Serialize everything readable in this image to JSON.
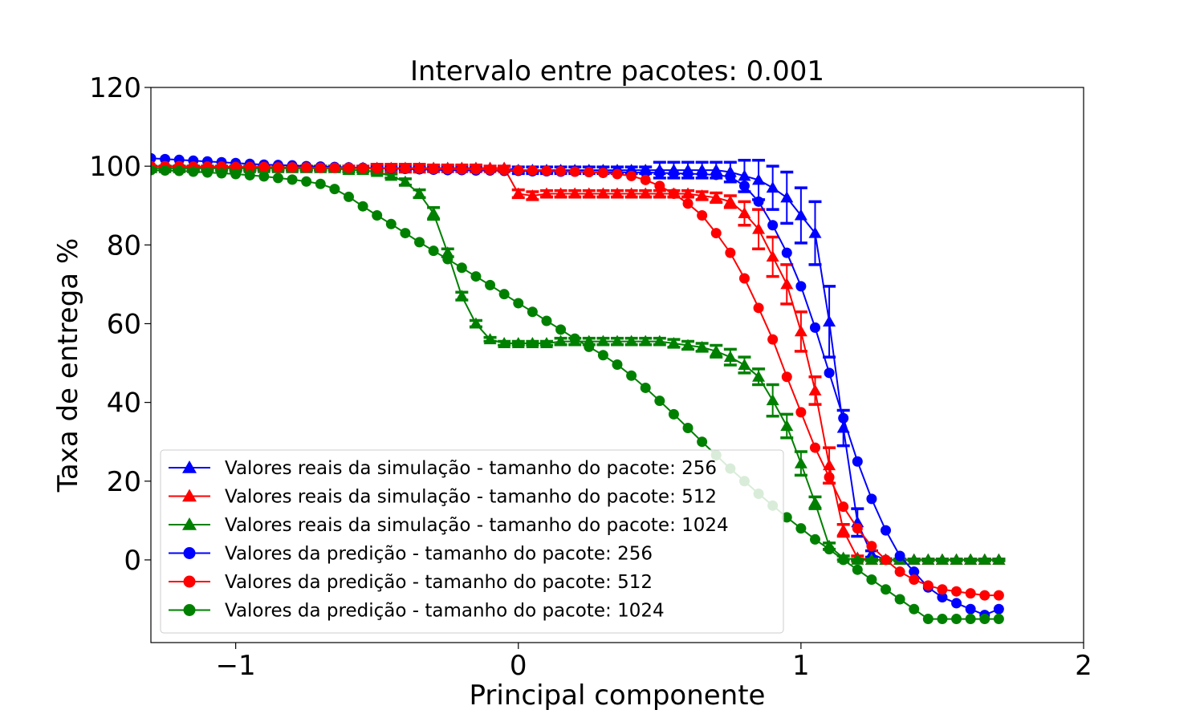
{
  "chart_data": {
    "type": "line",
    "title": "Intervalo entre pacotes: 0.001",
    "xlabel": "Principal componente",
    "ylabel": "Taxa de entrega %",
    "xlim": [
      -1.3,
      2.0
    ],
    "ylim": [
      -21,
      120
    ],
    "xticks": [
      -1,
      0,
      1,
      2
    ],
    "xtick_labels": [
      "−1",
      "0",
      "1",
      "2"
    ],
    "yticks": [
      0,
      20,
      40,
      60,
      80,
      100,
      120
    ],
    "ytick_labels": [
      "0",
      "20",
      "40",
      "60",
      "80",
      "100",
      "120"
    ],
    "grid": false,
    "legend_position": "lower-left",
    "series": [
      {
        "name": "Valores reais da simulação - tamanho do pacote: 256",
        "color": "#0000ff",
        "marker": "triangle",
        "errorbars": true,
        "x": [
          -1.3,
          -1.25,
          -1.2,
          -1.15,
          -1.1,
          -1.05,
          -1.0,
          -0.95,
          -0.9,
          -0.85,
          -0.8,
          -0.75,
          -0.7,
          -0.65,
          -0.6,
          -0.55,
          -0.5,
          -0.45,
          -0.4,
          -0.35,
          -0.3,
          -0.25,
          -0.2,
          -0.15,
          -0.1,
          -0.05,
          0.0,
          0.05,
          0.1,
          0.15,
          0.2,
          0.25,
          0.3,
          0.35,
          0.4,
          0.45,
          0.5,
          0.55,
          0.6,
          0.65,
          0.7,
          0.75,
          0.8,
          0.85,
          0.9,
          0.95,
          1.0,
          1.05,
          1.1,
          1.15,
          1.2,
          1.25,
          1.3,
          1.35,
          1.4,
          1.45,
          1.5,
          1.55,
          1.6,
          1.65,
          1.7
        ],
        "y": [
          99.5,
          99.5,
          99.5,
          99.5,
          99.5,
          99.5,
          99.5,
          99.5,
          99.5,
          99.5,
          99.5,
          99.5,
          99.5,
          99.5,
          99.5,
          99.5,
          99.5,
          99.5,
          99.5,
          99.5,
          99.5,
          99.5,
          99.5,
          99.5,
          99.5,
          99.5,
          99.0,
          99.0,
          99.0,
          99.0,
          99.0,
          99.0,
          99.0,
          99.0,
          99.0,
          99.0,
          99.0,
          99.0,
          99.0,
          99.0,
          99.0,
          98.5,
          97.5,
          96.5,
          94.5,
          92.0,
          87.5,
          83.0,
          60.5,
          33.5,
          9.5,
          1.5,
          0,
          0,
          0,
          0,
          0,
          0,
          0,
          0,
          0
        ],
        "err": [
          0.5,
          0.5,
          0.5,
          0.5,
          0.5,
          0.5,
          0.5,
          0.5,
          0.5,
          0.5,
          0.5,
          0.5,
          0.5,
          0.5,
          0.5,
          0.5,
          0.5,
          0.5,
          0.5,
          0.5,
          0.5,
          0.5,
          0.5,
          0.5,
          0.5,
          0.5,
          0.8,
          0.8,
          0.8,
          0.8,
          0.8,
          0.8,
          0.8,
          0.8,
          0.8,
          0.8,
          2.0,
          2.0,
          2.0,
          2.0,
          2.0,
          2.5,
          4.0,
          5.0,
          5.5,
          6.5,
          7.0,
          8.0,
          9.0,
          4.5,
          3.5,
          0.8,
          0.3,
          0.2,
          0.2,
          0.2,
          0.2,
          0.2,
          0.2,
          0.2,
          0.2
        ]
      },
      {
        "name": "Valores reais da simulação - tamanho do pacote: 512",
        "color": "#ff0000",
        "marker": "triangle",
        "errorbars": true,
        "x": [
          -1.3,
          -1.25,
          -1.2,
          -1.15,
          -1.1,
          -1.05,
          -1.0,
          -0.95,
          -0.9,
          -0.85,
          -0.8,
          -0.75,
          -0.7,
          -0.65,
          -0.6,
          -0.55,
          -0.5,
          -0.45,
          -0.4,
          -0.35,
          -0.3,
          -0.25,
          -0.2,
          -0.15,
          -0.1,
          -0.05,
          0.0,
          0.05,
          0.1,
          0.15,
          0.2,
          0.25,
          0.3,
          0.35,
          0.4,
          0.45,
          0.5,
          0.55,
          0.6,
          0.65,
          0.7,
          0.75,
          0.8,
          0.85,
          0.9,
          0.95,
          1.0,
          1.05,
          1.1,
          1.15,
          1.2,
          1.25,
          1.3,
          1.35,
          1.4,
          1.45,
          1.5,
          1.55,
          1.6,
          1.65,
          1.7
        ],
        "y": [
          99.5,
          99.5,
          99.5,
          99.5,
          99.5,
          99.5,
          99.5,
          99.5,
          99.5,
          99.5,
          99.5,
          99.5,
          99.5,
          99.5,
          99.5,
          99.5,
          99.5,
          99.5,
          99.5,
          99.5,
          99.5,
          99.5,
          99.5,
          99.5,
          99.5,
          99.5,
          93.0,
          92.5,
          93.0,
          93.0,
          93.0,
          93.0,
          93.0,
          93.0,
          93.0,
          93.0,
          93.0,
          93.0,
          93.0,
          92.5,
          92.0,
          91.0,
          88.0,
          84.0,
          77.0,
          70.0,
          58.0,
          43.0,
          24.0,
          7.5,
          0.5,
          0,
          0,
          0,
          0,
          0,
          0,
          0,
          0,
          0,
          0
        ],
        "err": [
          0.5,
          0.5,
          0.5,
          0.5,
          0.5,
          0.5,
          0.5,
          0.5,
          0.5,
          0.5,
          0.5,
          0.5,
          0.5,
          0.5,
          0.5,
          0.5,
          1.0,
          1.0,
          1.0,
          1.0,
          0.8,
          0.8,
          0.8,
          0.8,
          0.5,
          0.5,
          1.0,
          1.0,
          0.8,
          0.8,
          0.8,
          0.8,
          0.8,
          0.8,
          0.8,
          0.8,
          0.8,
          0.8,
          0.8,
          1.0,
          1.2,
          1.5,
          3.0,
          5.0,
          5.0,
          5.0,
          5.0,
          3.5,
          4.5,
          1.5,
          0.5,
          0.2,
          0.2,
          0.2,
          0.2,
          0.2,
          0.2,
          0.2,
          0.2,
          0.2,
          0.2
        ]
      },
      {
        "name": "Valores reais da simulação - tamanho do pacote: 1024",
        "color": "#008000",
        "marker": "triangle",
        "errorbars": true,
        "x": [
          -1.3,
          -1.25,
          -1.2,
          -1.15,
          -1.1,
          -1.05,
          -1.0,
          -0.95,
          -0.9,
          -0.85,
          -0.8,
          -0.75,
          -0.7,
          -0.65,
          -0.6,
          -0.55,
          -0.5,
          -0.45,
          -0.4,
          -0.35,
          -0.3,
          -0.25,
          -0.2,
          -0.15,
          -0.1,
          -0.05,
          0.0,
          0.05,
          0.1,
          0.15,
          0.2,
          0.25,
          0.3,
          0.35,
          0.4,
          0.45,
          0.5,
          0.55,
          0.6,
          0.65,
          0.7,
          0.75,
          0.8,
          0.85,
          0.9,
          0.95,
          1.0,
          1.05,
          1.1,
          1.15,
          1.2,
          1.25,
          1.3,
          1.35,
          1.4,
          1.45,
          1.5,
          1.55,
          1.6,
          1.65,
          1.7
        ],
        "y": [
          99.5,
          99.5,
          99.5,
          99.5,
          99.5,
          99.5,
          99.5,
          99.5,
          99.5,
          99.5,
          99.5,
          99.5,
          99.5,
          99.5,
          99.0,
          99.0,
          98.5,
          97.5,
          96.0,
          93.0,
          88.0,
          78.0,
          67.0,
          60.0,
          56.0,
          55.0,
          55.0,
          55.0,
          55.0,
          55.5,
          55.5,
          55.5,
          55.5,
          55.5,
          55.5,
          55.5,
          55.5,
          55.0,
          54.5,
          54.0,
          53.0,
          51.5,
          49.5,
          46.5,
          40.5,
          34.0,
          24.5,
          14.5,
          3.5,
          0.5,
          0,
          0,
          0,
          0,
          0,
          0,
          0,
          0,
          0,
          0,
          0
        ],
        "err": [
          0.5,
          0.5,
          0.5,
          0.5,
          0.5,
          0.5,
          0.5,
          0.5,
          0.5,
          0.5,
          0.5,
          0.5,
          0.5,
          0.5,
          0.5,
          0.5,
          0.5,
          0.5,
          0.8,
          1.0,
          1.5,
          1.0,
          1.0,
          0.8,
          0.5,
          0.5,
          0.5,
          0.5,
          0.5,
          0.8,
          0.8,
          0.8,
          0.8,
          0.8,
          0.8,
          0.8,
          0.8,
          1.0,
          1.0,
          1.0,
          1.5,
          2.0,
          2.0,
          2.0,
          4.0,
          3.0,
          3.0,
          1.5,
          0.8,
          0.5,
          0.2,
          0.2,
          0.2,
          0.2,
          0.2,
          0.2,
          0.2,
          0.2,
          0.2,
          0.2,
          0.2
        ]
      },
      {
        "name": "Valores da predição - tamanho do pacote: 256",
        "color": "#0000ff",
        "marker": "circle",
        "errorbars": false,
        "x": [
          -1.3,
          -1.25,
          -1.2,
          -1.15,
          -1.1,
          -1.05,
          -1.0,
          -0.95,
          -0.9,
          -0.85,
          -0.8,
          -0.75,
          -0.7,
          -0.65,
          -0.6,
          -0.55,
          -0.5,
          -0.45,
          -0.4,
          -0.35,
          -0.3,
          -0.25,
          -0.2,
          -0.15,
          -0.1,
          -0.05,
          0.0,
          0.05,
          0.1,
          0.15,
          0.2,
          0.25,
          0.3,
          0.35,
          0.4,
          0.45,
          0.5,
          0.55,
          0.6,
          0.65,
          0.7,
          0.75,
          0.8,
          0.85,
          0.9,
          0.95,
          1.0,
          1.05,
          1.1,
          1.15,
          1.2,
          1.25,
          1.3,
          1.35,
          1.4,
          1.45,
          1.5,
          1.55,
          1.6,
          1.65,
          1.7
        ],
        "y": [
          102.0,
          101.8,
          101.6,
          101.4,
          101.2,
          101.0,
          100.8,
          100.6,
          100.4,
          100.3,
          100.2,
          100.0,
          99.9,
          99.8,
          99.7,
          99.6,
          99.5,
          99.4,
          99.3,
          99.2,
          99.1,
          99.0,
          99.0,
          98.9,
          98.9,
          98.8,
          98.8,
          98.7,
          98.7,
          98.6,
          98.6,
          98.5,
          98.5,
          98.5,
          98.4,
          98.4,
          98.3,
          98.2,
          98.1,
          98.0,
          97.8,
          97.3,
          95.0,
          91.0,
          85.0,
          78.0,
          69.5,
          59.0,
          47.5,
          36.0,
          25.0,
          15.5,
          7.5,
          1.0,
          -3.0,
          -7.0,
          -9.5,
          -11.0,
          -12.5,
          -14.0,
          -12.5
        ]
      },
      {
        "name": "Valores da predição - tamanho do pacote: 512",
        "color": "#ff0000",
        "marker": "circle",
        "errorbars": false,
        "x": [
          -1.3,
          -1.25,
          -1.2,
          -1.15,
          -1.1,
          -1.05,
          -1.0,
          -0.95,
          -0.9,
          -0.85,
          -0.8,
          -0.75,
          -0.7,
          -0.65,
          -0.6,
          -0.55,
          -0.5,
          -0.45,
          -0.4,
          -0.35,
          -0.3,
          -0.25,
          -0.2,
          -0.15,
          -0.1,
          -0.05,
          0.0,
          0.05,
          0.1,
          0.15,
          0.2,
          0.25,
          0.3,
          0.35,
          0.4,
          0.45,
          0.5,
          0.55,
          0.6,
          0.65,
          0.7,
          0.75,
          0.8,
          0.85,
          0.9,
          0.95,
          1.0,
          1.05,
          1.1,
          1.15,
          1.2,
          1.25,
          1.3,
          1.35,
          1.4,
          1.45,
          1.5,
          1.55,
          1.6,
          1.65,
          1.7
        ],
        "y": [
          100.0,
          100.0,
          100.0,
          99.9,
          99.9,
          99.9,
          99.8,
          99.8,
          99.8,
          99.7,
          99.7,
          99.7,
          99.6,
          99.6,
          99.6,
          99.5,
          99.5,
          99.5,
          99.4,
          99.4,
          99.3,
          99.3,
          99.2,
          99.2,
          99.1,
          99.0,
          99.0,
          98.9,
          98.8,
          98.7,
          98.6,
          98.5,
          98.3,
          98.0,
          97.5,
          96.5,
          95.0,
          93.0,
          90.5,
          87.5,
          83.0,
          78.0,
          71.5,
          64.0,
          56.0,
          46.5,
          37.5,
          28.5,
          21.0,
          13.5,
          8.0,
          3.5,
          0.0,
          -3.0,
          -5.0,
          -6.5,
          -7.5,
          -8.0,
          -8.5,
          -9.0,
          -9.0
        ]
      },
      {
        "name": "Valores da predição - tamanho do pacote: 1024",
        "color": "#008000",
        "marker": "circle",
        "errorbars": false,
        "x": [
          -1.3,
          -1.25,
          -1.2,
          -1.15,
          -1.1,
          -1.05,
          -1.0,
          -0.95,
          -0.9,
          -0.85,
          -0.8,
          -0.75,
          -0.7,
          -0.65,
          -0.6,
          -0.55,
          -0.5,
          -0.45,
          -0.4,
          -0.35,
          -0.3,
          -0.25,
          -0.2,
          -0.15,
          -0.1,
          -0.05,
          0.0,
          0.05,
          0.1,
          0.15,
          0.2,
          0.25,
          0.3,
          0.35,
          0.4,
          0.45,
          0.5,
          0.55,
          0.6,
          0.65,
          0.7,
          0.75,
          0.8,
          0.85,
          0.9,
          0.95,
          1.0,
          1.05,
          1.1,
          1.15,
          1.2,
          1.25,
          1.3,
          1.35,
          1.4,
          1.45,
          1.5,
          1.55,
          1.6,
          1.65,
          1.7
        ],
        "y": [
          99.0,
          98.9,
          98.8,
          98.6,
          98.4,
          98.2,
          98.0,
          97.7,
          97.4,
          97.0,
          96.6,
          96.1,
          95.5,
          94.2,
          92.2,
          89.8,
          87.5,
          85.3,
          83.0,
          80.7,
          78.5,
          76.4,
          74.2,
          72.0,
          69.8,
          67.5,
          65.2,
          63.0,
          60.7,
          58.5,
          56.2,
          54.1,
          52.0,
          49.6,
          46.8,
          43.7,
          40.4,
          37.0,
          33.5,
          30.0,
          26.6,
          23.2,
          20.0,
          16.8,
          13.8,
          10.8,
          8.0,
          5.2,
          2.7,
          0.0,
          -2.5,
          -5.0,
          -7.5,
          -10.0,
          -12.5,
          -15.0,
          -15.0,
          -15.0,
          -15.0,
          -15.0,
          -15.0
        ]
      }
    ]
  }
}
